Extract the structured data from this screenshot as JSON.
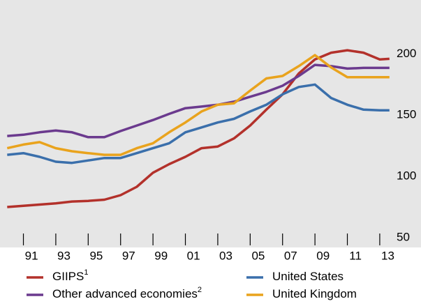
{
  "chart_data": {
    "type": "line",
    "x": [
      1990,
      1991,
      1992,
      1993,
      1994,
      1995,
      1996,
      1997,
      1998,
      1999,
      2000,
      2001,
      2002,
      2003,
      2004,
      2005,
      2006,
      2007,
      2008,
      2009,
      2010,
      2011,
      2012,
      2013,
      2013.6
    ],
    "xlim": [
      1989.9,
      2014.2
    ],
    "xticks": [
      {
        "value": 1991,
        "label": "91"
      },
      {
        "value": 1993,
        "label": "93"
      },
      {
        "value": 1995,
        "label": "95"
      },
      {
        "value": 1997,
        "label": "97"
      },
      {
        "value": 1999,
        "label": "99"
      },
      {
        "value": 2001,
        "label": "01"
      },
      {
        "value": 2003,
        "label": "03"
      },
      {
        "value": 2005,
        "label": "05"
      },
      {
        "value": 2007,
        "label": "07"
      },
      {
        "value": 2009,
        "label": "09"
      },
      {
        "value": 2011,
        "label": "11"
      },
      {
        "value": 2013,
        "label": "13"
      }
    ],
    "ylim": [
      42,
      244
    ],
    "yticks": [
      50,
      100,
      150,
      200
    ],
    "series": [
      {
        "name": "GIIPS",
        "footnote": "1",
        "color": "#b3312b",
        "values": [
          75,
          76,
          77,
          78,
          79.5,
          80,
          81,
          84.7,
          91.5,
          103,
          110,
          116,
          123,
          124.4,
          131,
          141.5,
          154.5,
          167,
          184,
          195.5,
          201,
          203,
          201,
          195.5,
          196
        ]
      },
      {
        "name": "Other advanced economies",
        "footnote": "2",
        "color": "#6b3a8e",
        "values": [
          133,
          134,
          136,
          137.5,
          136,
          132,
          132,
          137,
          141.5,
          146,
          151,
          155.7,
          157,
          158.5,
          161,
          165,
          169,
          174,
          182,
          191,
          190,
          188,
          188.6,
          188.6,
          188.6
        ]
      },
      {
        "name": "United States",
        "color": "#3a6fab",
        "values": [
          117.6,
          119,
          116,
          112,
          111,
          113,
          115,
          115,
          119,
          123,
          127,
          136,
          140,
          144,
          147,
          153,
          158.5,
          167,
          173,
          175,
          164,
          158.5,
          154.5,
          154,
          154
        ]
      },
      {
        "name": "United Kingdom",
        "color": "#e9a31d",
        "values": [
          123,
          126,
          128,
          123,
          120.5,
          119,
          117.6,
          117.6,
          123,
          127,
          136,
          144,
          153,
          158.5,
          159.7,
          170,
          180,
          182,
          190,
          199,
          189,
          181,
          181,
          181,
          181
        ]
      }
    ]
  }
}
